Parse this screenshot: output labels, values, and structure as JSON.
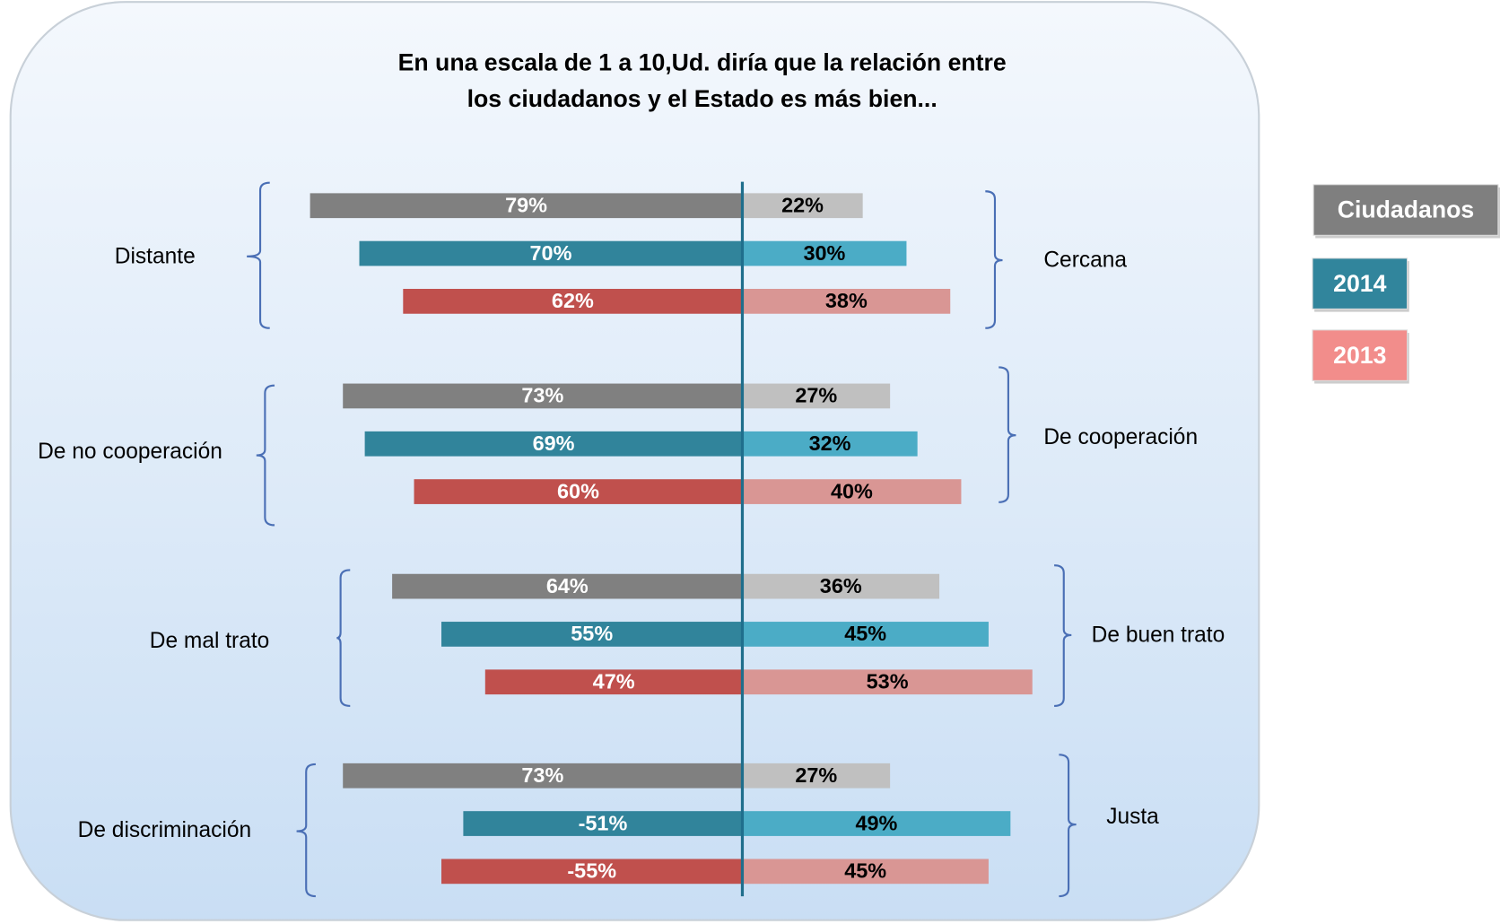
{
  "chart_data": {
    "type": "diverging_bar",
    "title": [
      "En una escala de 1 a 10,Ud. diría que la relación entre",
      "los ciudadanos y el Estado es más bien..."
    ],
    "groups": [
      {
        "left": "Distante",
        "right": "Cercana"
      },
      {
        "left": "De no cooperación",
        "right": "De cooperación"
      },
      {
        "left": "De mal trato",
        "right": "De buen trato"
      },
      {
        "left": "De discriminación",
        "right": "Justa"
      }
    ],
    "series": [
      {
        "name": "Ciudadanos",
        "color": "#808080",
        "color_right": "#c0c0c0",
        "left_values": [
          79,
          73,
          64,
          73
        ],
        "left_labels": [
          "79%",
          "73%",
          "64%",
          "73%"
        ],
        "right_values": [
          22,
          27,
          36,
          27
        ],
        "right_labels": [
          "22%",
          "27%",
          "36%",
          "27%"
        ]
      },
      {
        "name": "2014",
        "color": "#31849b",
        "color_right": "#4bacc6",
        "left_values": [
          70,
          69,
          55,
          -51
        ],
        "left_labels": [
          "70%",
          "69%",
          "55%",
          "-51%"
        ],
        "right_values": [
          30,
          32,
          45,
          49
        ],
        "right_labels": [
          "30%",
          "32%",
          "45%",
          "49%"
        ]
      },
      {
        "name": "2013",
        "color": "#c0504d",
        "color_right": "#d99694",
        "left_values": [
          62,
          60,
          47,
          -55
        ],
        "left_labels": [
          "62%",
          "60%",
          "47%",
          "-55%"
        ],
        "right_values": [
          38,
          40,
          53,
          45
        ],
        "right_labels": [
          "38%",
          "40%",
          "53%",
          "45%"
        ]
      }
    ]
  }
}
